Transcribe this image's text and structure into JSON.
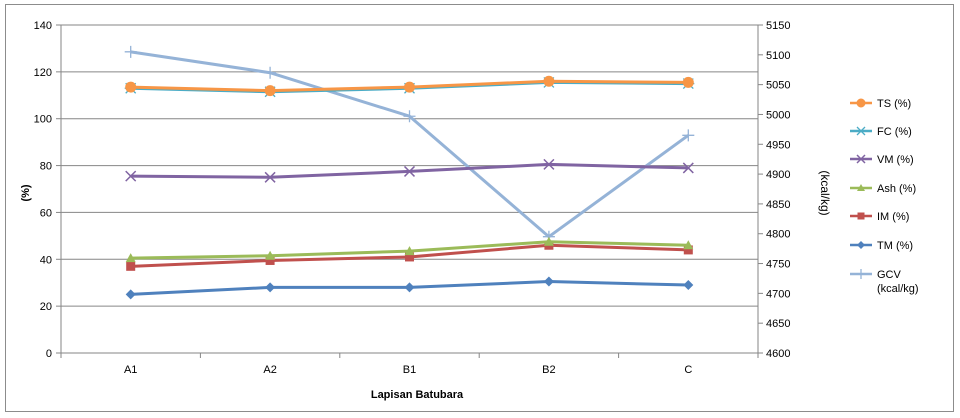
{
  "chart_data": {
    "type": "line",
    "categories": [
      "A1",
      "A2",
      "B1",
      "B2",
      "C"
    ],
    "xlabel": "Lapisan Batubara",
    "ylabel_left": "(%)",
    "ylabel_right": "(kcal/kg)",
    "ylim_left": [
      0,
      140
    ],
    "yticks_left": [
      "0",
      "20",
      "40",
      "60",
      "80",
      "100",
      "120",
      "140"
    ],
    "ylim_right": [
      4600,
      5150
    ],
    "yticks_right": [
      "4600",
      "4650",
      "4700",
      "4750",
      "4800",
      "4850",
      "4900",
      "4950",
      "5000",
      "5050",
      "5100",
      "5150"
    ],
    "grid": true,
    "legend_position": "right",
    "series": [
      {
        "name": "TS (%)",
        "axis": "left",
        "marker": "circle",
        "color": "#f79646",
        "values": [
          113.5,
          112,
          113.5,
          116,
          115.5
        ]
      },
      {
        "name": "FC (%)",
        "axis": "left",
        "marker": "star",
        "color": "#4bacc6",
        "values": [
          113,
          111.5,
          113,
          115.5,
          115
        ]
      },
      {
        "name": "VM (%)",
        "axis": "left",
        "marker": "x",
        "color": "#8064a2",
        "values": [
          75.5,
          75,
          77.5,
          80.5,
          79
        ]
      },
      {
        "name": "Ash (%)",
        "axis": "left",
        "marker": "triangle",
        "color": "#9bbb59",
        "values": [
          40.5,
          41.5,
          43.5,
          47.5,
          46
        ]
      },
      {
        "name": "IM (%)",
        "axis": "left",
        "marker": "square",
        "color": "#c0504d",
        "values": [
          37,
          39.5,
          41,
          46,
          44
        ]
      },
      {
        "name": "TM (%)",
        "axis": "left",
        "marker": "diamond",
        "color": "#4f81bd",
        "values": [
          25,
          28,
          28,
          30.5,
          29
        ]
      },
      {
        "name": "GCV (kcal/kg)",
        "axis": "right",
        "marker": "plus",
        "color": "#95b3d7",
        "values": [
          5105,
          5070,
          4997,
          4795,
          4965
        ]
      }
    ]
  }
}
